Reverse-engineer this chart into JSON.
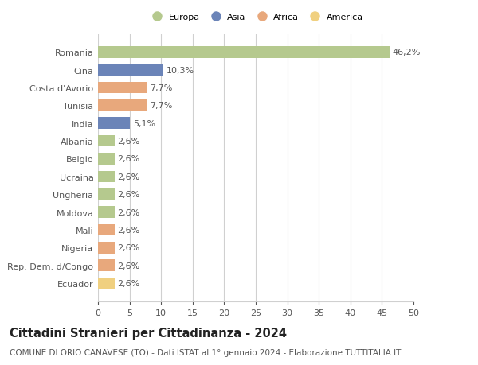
{
  "categories": [
    "Romania",
    "Cina",
    "Costa d'Avorio",
    "Tunisia",
    "India",
    "Albania",
    "Belgio",
    "Ucraina",
    "Ungheria",
    "Moldova",
    "Mali",
    "Nigeria",
    "Rep. Dem. d/Congo",
    "Ecuador"
  ],
  "values": [
    46.2,
    10.3,
    7.7,
    7.7,
    5.1,
    2.6,
    2.6,
    2.6,
    2.6,
    2.6,
    2.6,
    2.6,
    2.6,
    2.6
  ],
  "labels": [
    "46,2%",
    "10,3%",
    "7,7%",
    "7,7%",
    "5,1%",
    "2,6%",
    "2,6%",
    "2,6%",
    "2,6%",
    "2,6%",
    "2,6%",
    "2,6%",
    "2,6%",
    "2,6%"
  ],
  "colors": [
    "#b5c98e",
    "#6b84b8",
    "#e8a87c",
    "#e8a87c",
    "#6b84b8",
    "#b5c98e",
    "#b5c98e",
    "#b5c98e",
    "#b5c98e",
    "#b5c98e",
    "#e8a87c",
    "#e8a87c",
    "#e8a87c",
    "#f0d080"
  ],
  "legend_labels": [
    "Europa",
    "Asia",
    "Africa",
    "America"
  ],
  "legend_colors": [
    "#b5c98e",
    "#6b84b8",
    "#e8a87c",
    "#f0d080"
  ],
  "xlim": [
    0,
    50
  ],
  "xticks": [
    0,
    5,
    10,
    15,
    20,
    25,
    30,
    35,
    40,
    45,
    50
  ],
  "title": "Cittadini Stranieri per Cittadinanza - 2024",
  "subtitle": "COMUNE DI ORIO CANAVESE (TO) - Dati ISTAT al 1° gennaio 2024 - Elaborazione TUTTITALIA.IT",
  "background_color": "#ffffff",
  "grid_color": "#d0d0d0",
  "bar_height": 0.65,
  "label_fontsize": 8,
  "tick_fontsize": 8,
  "title_fontsize": 10.5,
  "subtitle_fontsize": 7.5
}
